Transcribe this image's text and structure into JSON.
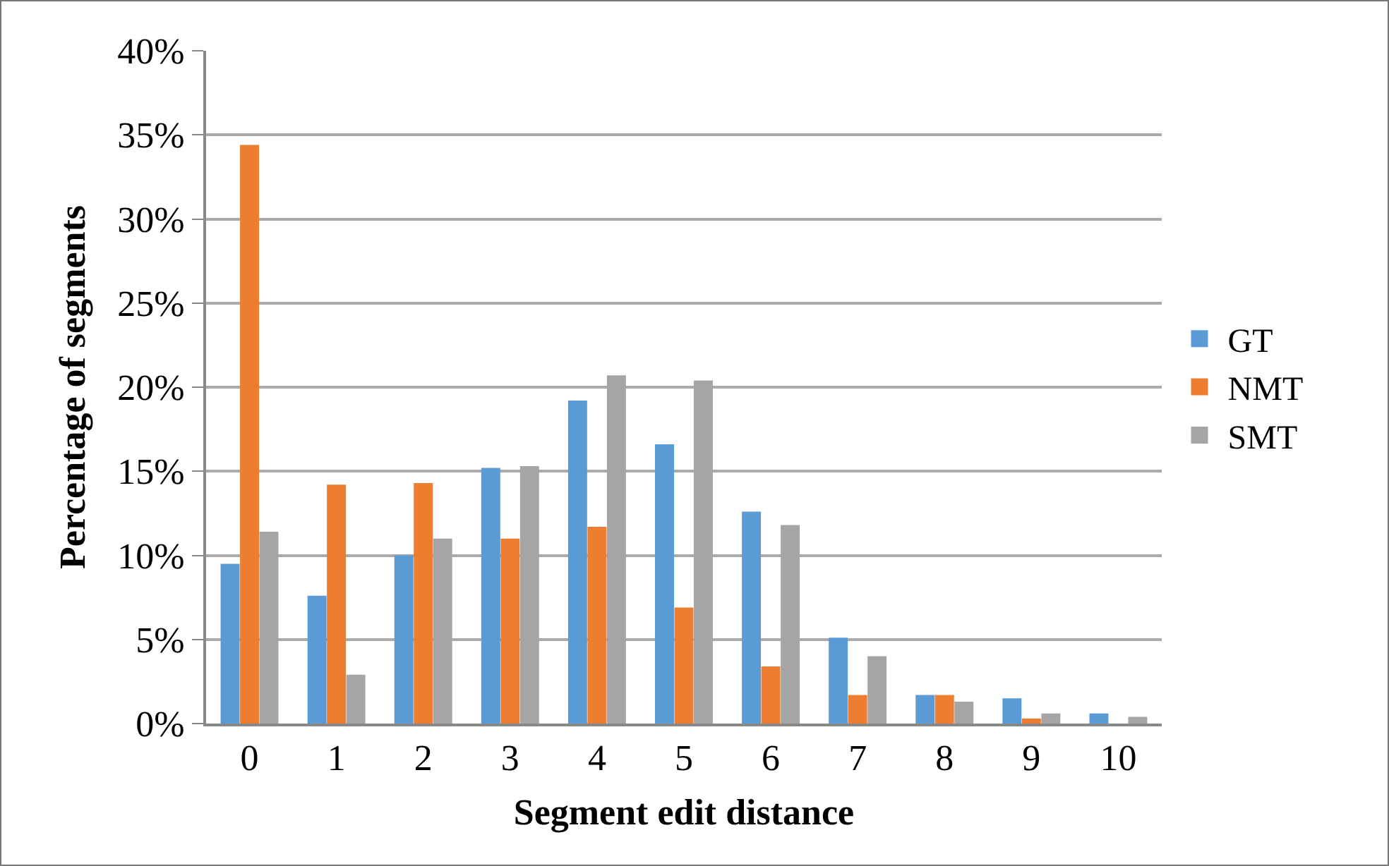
{
  "chart_data": {
    "type": "bar",
    "xlabel": "Segment edit distance",
    "ylabel": "Percentage of segments",
    "categories": [
      "0",
      "1",
      "2",
      "3",
      "4",
      "5",
      "6",
      "7",
      "8",
      "9",
      "10"
    ],
    "series": [
      {
        "name": "GT",
        "color": "#5b9bd5",
        "values": [
          9.5,
          7.6,
          10.0,
          15.2,
          19.2,
          16.6,
          12.6,
          5.1,
          1.7,
          1.5,
          0.6
        ]
      },
      {
        "name": "NMT",
        "color": "#ed7d31",
        "values": [
          34.4,
          14.2,
          14.3,
          11.0,
          11.7,
          6.9,
          3.4,
          1.7,
          1.7,
          0.3,
          0
        ]
      },
      {
        "name": "SMT",
        "color": "#a5a5a5",
        "values": [
          11.4,
          2.9,
          11.0,
          15.3,
          20.7,
          20.4,
          11.8,
          4.0,
          1.3,
          0.6,
          0.4
        ]
      }
    ],
    "ylim": [
      0,
      40
    ],
    "yticks": [
      {
        "value": 0,
        "label": "0%"
      },
      {
        "value": 5,
        "label": "5%"
      },
      {
        "value": 10,
        "label": "10%"
      },
      {
        "value": 15,
        "label": "15%"
      },
      {
        "value": 20,
        "label": "20%"
      },
      {
        "value": 25,
        "label": "25%"
      },
      {
        "value": 30,
        "label": "30%"
      },
      {
        "value": 35,
        "label": "35%"
      },
      {
        "value": 40,
        "label": "40%"
      }
    ],
    "grid": "y",
    "legend": "right"
  }
}
